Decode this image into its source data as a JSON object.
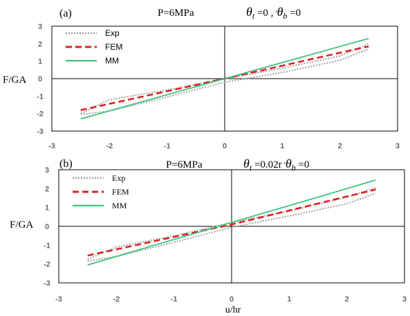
{
  "chart_data": [
    {
      "type": "line",
      "panel_label": "(a)",
      "title": {
        "pressure": "P=6MPa",
        "theta_t_sym": "θ",
        "theta_t_sub": "t",
        "theta_t_val": " =0 ,",
        "tick_mark": "'",
        "theta_b_sym": "θ",
        "theta_b_sub": "b",
        "theta_b_val": " =0"
      },
      "ylabel": "F/GA",
      "xlabel": "",
      "xlim": [
        -3,
        3
      ],
      "ylim": [
        -3,
        3
      ],
      "xticks": [
        "-3",
        "-2",
        "-1",
        "0",
        "1",
        "2",
        "3"
      ],
      "yticks": [
        "3",
        "2",
        "1",
        "0",
        "-1",
        "-2",
        "-3"
      ],
      "legend_position": "top-left",
      "series": [
        {
          "name": "Exp",
          "color": "#a0a0a0",
          "style": "dotted",
          "upper": [
            [
              -2.5,
              -2.0
            ],
            [
              -2.0,
              -1.2
            ],
            [
              -1.0,
              -0.65
            ],
            [
              0.0,
              0.0
            ],
            [
              1.0,
              0.6
            ],
            [
              2.0,
              1.3
            ],
            [
              2.5,
              2.0
            ]
          ],
          "lower": [
            [
              -2.5,
              -2.05
            ],
            [
              -2.0,
              -1.85
            ],
            [
              -1.0,
              -1.05
            ],
            [
              0.0,
              -0.2
            ],
            [
              1.0,
              0.35
            ],
            [
              2.0,
              1.05
            ],
            [
              2.5,
              1.7
            ]
          ]
        },
        {
          "name": "FEM",
          "color": "#e02020",
          "style": "dashed",
          "points": [
            [
              -2.5,
              -1.8
            ],
            [
              0.0,
              0.0
            ],
            [
              2.5,
              1.85
            ]
          ]
        },
        {
          "name": "MM",
          "color": "#40c080",
          "style": "solid",
          "points": [
            [
              -2.5,
              -2.3
            ],
            [
              0.0,
              0.0
            ],
            [
              2.5,
              2.3
            ]
          ]
        }
      ]
    },
    {
      "type": "line",
      "panel_label": "(b)",
      "title": {
        "pressure": "P=6MPa",
        "theta_t_sym": "θ",
        "theta_t_sub": "t",
        "theta_t_val": " =0.02r",
        "tick_mark": "'",
        "theta_b_sym": "θ",
        "theta_b_sub": "b",
        "theta_b_val": " =0"
      },
      "ylabel": "F/GA",
      "xlabel": "u/hr",
      "xlim": [
        -3,
        3
      ],
      "ylim": [
        -3,
        3
      ],
      "xticks": [
        "-3",
        "-2",
        "-1",
        "0",
        "1",
        "2",
        "3"
      ],
      "yticks": [
        "3",
        "2",
        "1",
        "0",
        "-1",
        "-2",
        "-3"
      ],
      "legend_position": "top-left",
      "series": [
        {
          "name": "Exp",
          "color": "#a0a0a0",
          "style": "dotted",
          "upper": [
            [
              -2.5,
              -1.75
            ],
            [
              -2.0,
              -1.1
            ],
            [
              -1.0,
              -0.5
            ],
            [
              0.0,
              0.2
            ],
            [
              1.0,
              0.8
            ],
            [
              2.0,
              1.55
            ],
            [
              2.5,
              2.05
            ]
          ],
          "lower": [
            [
              -2.5,
              -1.85
            ],
            [
              -2.0,
              -1.6
            ],
            [
              -1.0,
              -0.85
            ],
            [
              0.0,
              -0.05
            ],
            [
              1.0,
              0.55
            ],
            [
              2.0,
              1.2
            ],
            [
              2.5,
              1.75
            ]
          ]
        },
        {
          "name": "FEM",
          "color": "#e02020",
          "style": "dashed",
          "points": [
            [
              -2.5,
              -1.55
            ],
            [
              0.0,
              0.1
            ],
            [
              2.5,
              1.95
            ]
          ]
        },
        {
          "name": "MM",
          "color": "#40c080",
          "style": "solid",
          "points": [
            [
              -2.5,
              -2.05
            ],
            [
              0.0,
              0.2
            ],
            [
              2.5,
              2.45
            ]
          ]
        }
      ]
    }
  ]
}
